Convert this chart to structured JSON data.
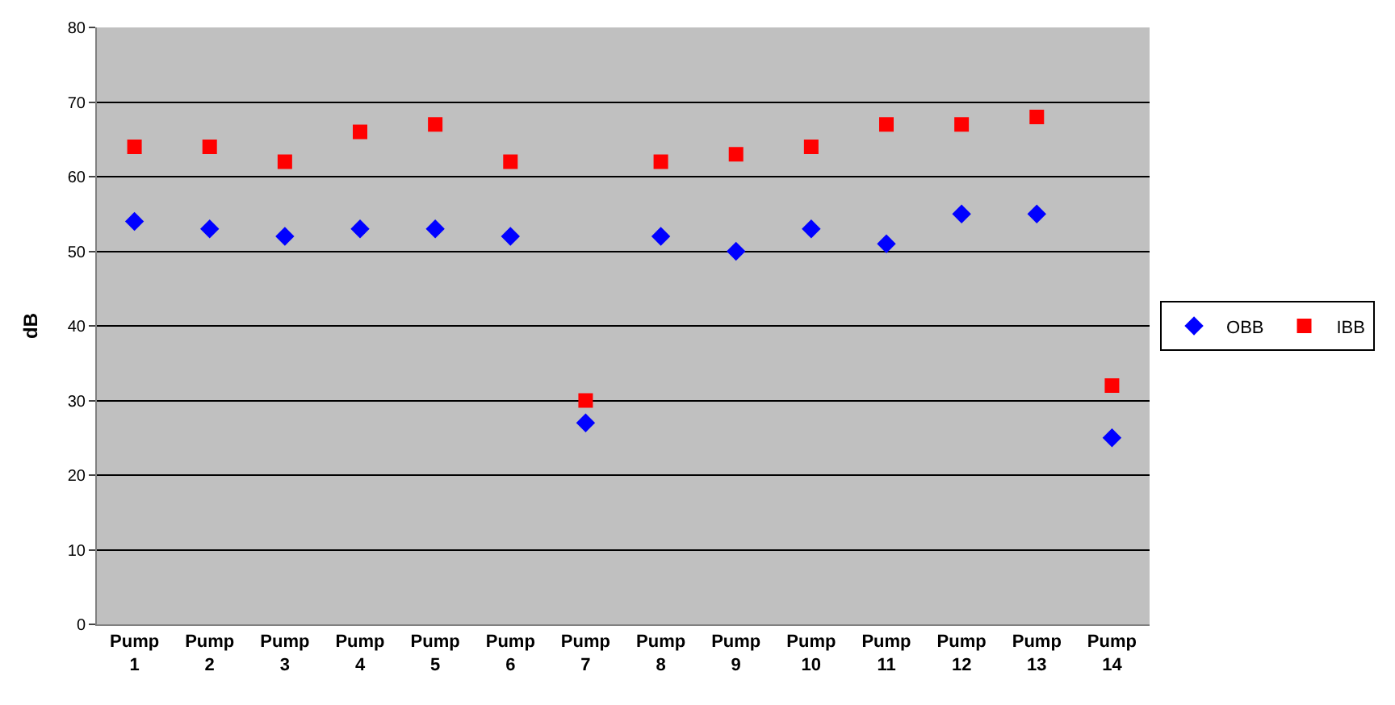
{
  "chart_data": {
    "type": "scatter",
    "ylabel": "dB",
    "categories": [
      "Pump 1",
      "Pump 2",
      "Pump 3",
      "Pump 4",
      "Pump 5",
      "Pump 6",
      "Pump 7",
      "Pump 8",
      "Pump 9",
      "Pump 10",
      "Pump 11",
      "Pump 12",
      "Pump 13",
      "Pump 14"
    ],
    "series": [
      {
        "name": "OBB",
        "color": "#0000ff",
        "marker": "diamond",
        "values": [
          54,
          53,
          52,
          53,
          53,
          52,
          27,
          52,
          50,
          53,
          51,
          55,
          55,
          25
        ]
      },
      {
        "name": "IBB",
        "color": "#ff0000",
        "marker": "square",
        "values": [
          64,
          64,
          62,
          66,
          67,
          62,
          30,
          62,
          63,
          64,
          67,
          67,
          68,
          32
        ]
      }
    ],
    "ylim": [
      0,
      80
    ],
    "yticks": [
      0,
      10,
      20,
      30,
      40,
      50,
      60,
      70,
      80
    ],
    "grid": "y",
    "legend": "right"
  }
}
